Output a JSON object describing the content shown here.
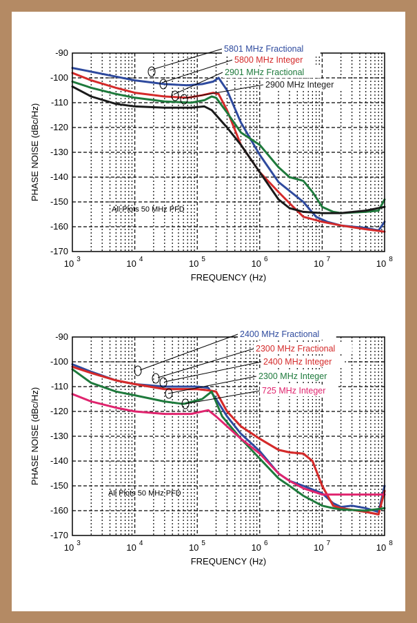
{
  "colors": {
    "frame": "#b48a64",
    "background": "#ffffff",
    "axis": "#000000",
    "grid": "#000000"
  },
  "chart_data": [
    {
      "type": "line",
      "title": "",
      "xlabel": "FREQUENCY (Hz)",
      "ylabel": "PHASE NOISE (dBc/Hz)",
      "x_scale": "log",
      "xlim": [
        1000,
        100000000
      ],
      "ylim": [
        -170,
        -90
      ],
      "grid": true,
      "x_ticks": [
        {
          "base": "10",
          "exp": "3"
        },
        {
          "base": "10",
          "exp": "4"
        },
        {
          "base": "10",
          "exp": "5"
        },
        {
          "base": "10",
          "exp": "6"
        },
        {
          "base": "10",
          "exp": "7"
        },
        {
          "base": "10",
          "exp": "8"
        }
      ],
      "y_ticks": [
        "-90",
        "-100",
        "-110",
        "-120",
        "-130",
        "-140",
        "-150",
        "-160",
        "-170"
      ],
      "annotation": "All Plots 50 MHz PFD",
      "series": [
        {
          "name": "5801 MHz Fractional",
          "color": "#2e4a9e",
          "x": [
            1000,
            2000,
            5000,
            10000,
            30000,
            70000,
            120000,
            180000,
            220000,
            300000,
            500000,
            1000000,
            2000000,
            5000000,
            8000000,
            12000000,
            20000000,
            50000000,
            80000000,
            100000000
          ],
          "y": [
            -96,
            -97.5,
            -99.5,
            -101,
            -102.5,
            -103,
            -102.5,
            -101.5,
            -100,
            -105,
            -118,
            -131,
            -142,
            -150,
            -156,
            -158,
            -159.5,
            -160.5,
            -161.5,
            -158
          ]
        },
        {
          "name": "5800 MHz Integer",
          "color": "#d42a2a",
          "x": [
            1000,
            2000,
            5000,
            10000,
            30000,
            70000,
            120000,
            180000,
            220000,
            300000,
            500000,
            1000000,
            2000000,
            3000000,
            5000000,
            10000000,
            20000000,
            50000000,
            100000000
          ],
          "y": [
            -98,
            -101,
            -104,
            -106,
            -107.5,
            -108,
            -107,
            -106,
            -106.5,
            -113,
            -127,
            -138,
            -146,
            -150.5,
            -156,
            -158,
            -159.5,
            -161,
            -162
          ]
        },
        {
          "name": "2901 MHz Fractional",
          "color": "#1e7a3c",
          "x": [
            1000,
            2000,
            5000,
            10000,
            30000,
            80000,
            130000,
            170000,
            200000,
            300000,
            500000,
            1000000,
            2000000,
            3000000,
            5000000,
            7000000,
            10000000,
            15000000,
            20000000,
            50000000,
            80000000,
            100000000
          ],
          "y": [
            -101.5,
            -104,
            -106.5,
            -108,
            -109.5,
            -110,
            -109,
            -107.5,
            -108,
            -114,
            -122,
            -127,
            -136,
            -140,
            -141.5,
            -146,
            -152,
            -154,
            -154.5,
            -154,
            -153.5,
            -149
          ]
        },
        {
          "name": "2900 MHz Integer",
          "color": "#1a1a1a",
          "x": [
            1000,
            2000,
            5000,
            10000,
            30000,
            80000,
            130000,
            170000,
            200000,
            300000,
            500000,
            1000000,
            2000000,
            3000000,
            5000000,
            10000000,
            20000000,
            50000000,
            100000000
          ],
          "y": [
            -103.5,
            -107.5,
            -110.5,
            -111.5,
            -112,
            -112,
            -111.5,
            -113,
            -115,
            -120,
            -127,
            -138,
            -149,
            -152.5,
            -154,
            -154.5,
            -154.5,
            -153.5,
            -152
          ]
        }
      ],
      "labels": [
        {
          "text": "5801 MHz Fractional",
          "series": 0
        },
        {
          "text": "5800 MHz Integer",
          "series": 1
        },
        {
          "text": "2901 MHz Fractional",
          "series": 2
        },
        {
          "text": "2900 MHz Integer",
          "series": 3
        }
      ]
    },
    {
      "type": "line",
      "title": "",
      "xlabel": "FREQUENCY (Hz)",
      "ylabel": "PHASE NOISE (dBc/Hz)",
      "x_scale": "log",
      "xlim": [
        1000,
        100000000
      ],
      "ylim": [
        -170,
        -90
      ],
      "grid": true,
      "x_ticks": [
        {
          "base": "10",
          "exp": "3"
        },
        {
          "base": "10",
          "exp": "4"
        },
        {
          "base": "10",
          "exp": "5"
        },
        {
          "base": "10",
          "exp": "6"
        },
        {
          "base": "10",
          "exp": "7"
        },
        {
          "base": "10",
          "exp": "8"
        }
      ],
      "y_ticks": [
        "-90",
        "-100",
        "-110",
        "-120",
        "-130",
        "-140",
        "-150",
        "-160",
        "-170"
      ],
      "annotation": "All Plots 50 MHz PFD",
      "series": [
        {
          "name": "2400 MHz Fractional",
          "color": "#2e4a9e",
          "x": [
            1000,
            2000,
            5000,
            10000,
            30000,
            100000,
            150000,
            200000,
            300000,
            500000,
            1000000,
            2000000,
            3000000,
            5000000,
            10000000,
            15000000,
            20000000,
            30000000,
            50000000,
            80000000,
            100000000
          ],
          "y": [
            -101,
            -104,
            -107.5,
            -109,
            -110,
            -110,
            -110.5,
            -115,
            -122,
            -129,
            -136,
            -145,
            -148,
            -150,
            -153,
            -157,
            -158.5,
            -158,
            -159,
            -160.5,
            -150
          ]
        },
        {
          "name": "2300 MHz Fractional",
          "color": "#d42a2a",
          "x": [
            1000,
            2000,
            5000,
            10000,
            30000,
            100000,
            150000,
            200000,
            300000,
            500000,
            1000000,
            2000000,
            3000000,
            5000000,
            7000000,
            10000000,
            15000000,
            20000000,
            50000000,
            80000000,
            100000000
          ],
          "y": [
            -102,
            -104.5,
            -107.5,
            -109,
            -111,
            -111,
            -111.5,
            -112,
            -120,
            -126,
            -131,
            -135.5,
            -136.5,
            -137,
            -140,
            -150,
            -158,
            -159,
            -160.5,
            -161.5,
            -152
          ]
        },
        {
          "name": "2400 MHz Integer",
          "color": "#d42a2a",
          "x": [
            1000,
            2000,
            5000,
            10000,
            30000,
            100000,
            150000,
            200000,
            300000,
            500000,
            1000000,
            2000000,
            3000000,
            5000000,
            7000000,
            10000000,
            15000000,
            20000000,
            50000000,
            80000000,
            100000000
          ],
          "y": [
            -102,
            -104.5,
            -107.5,
            -109,
            -111,
            -111,
            -111.5,
            -112,
            -120,
            -126,
            -131,
            -135.5,
            -136.5,
            -137,
            -140,
            -150,
            -158,
            -159,
            -160.5,
            -161.5,
            -152
          ]
        },
        {
          "name": "2300 MHz Integer",
          "color": "#1e7a3c",
          "x": [
            1000,
            2000,
            5000,
            10000,
            30000,
            60000,
            120000,
            170000,
            250000,
            500000,
            1000000,
            2000000,
            3000000,
            5000000,
            10000000,
            15000000,
            20000000,
            50000000,
            100000000
          ],
          "y": [
            -103,
            -108.5,
            -112,
            -113.5,
            -116,
            -117,
            -115,
            -112,
            -122,
            -131,
            -139,
            -147,
            -150,
            -154,
            -158,
            -159,
            -159.5,
            -160,
            -159
          ]
        },
        {
          "name": "725 MHz Integer",
          "color": "#e0246e",
          "x": [
            1000,
            2000,
            5000,
            10000,
            30000,
            80000,
            150000,
            200000,
            300000,
            500000,
            1000000,
            2000000,
            3000000,
            5000000,
            10000000,
            20000000,
            50000000,
            100000000
          ],
          "y": [
            -113,
            -116,
            -118.5,
            -120,
            -121,
            -121,
            -119.5,
            -122,
            -126,
            -131,
            -137,
            -145,
            -148,
            -151,
            -153.5,
            -153.5,
            -153.5,
            -153.5
          ]
        }
      ],
      "labels": [
        {
          "text": "2400 MHz Fractional",
          "series": 0
        },
        {
          "text": "2300 MHz Fractional",
          "series": 1
        },
        {
          "text": "2400 MHz Integer",
          "series": 2
        },
        {
          "text": "2300 MHz Integer",
          "series": 3
        },
        {
          "text": "725 MHz Integer",
          "series": 4
        }
      ]
    }
  ]
}
